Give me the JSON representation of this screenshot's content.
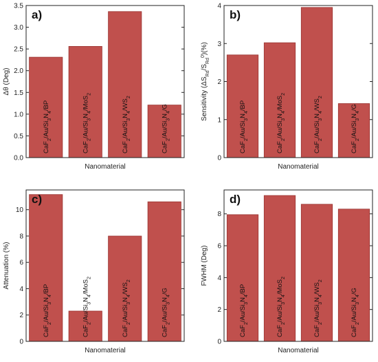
{
  "style": {
    "bar_color": "#c0504d",
    "bar_edge_color": "#9a3431"
  },
  "chart_data": [
    {
      "panel_label": "a)",
      "type": "bar",
      "ylabel": "Δθ (Deg)",
      "xlabel": "Nanomaterial",
      "ylim": [
        0,
        3.5
      ],
      "yticks": [
        0.0,
        0.5,
        1.0,
        1.5,
        2.0,
        2.5,
        3.0,
        3.5
      ],
      "ytick_labels": [
        "0.0",
        "0.5",
        "1.0",
        "1.5",
        "2.0",
        "2.5",
        "3.0",
        "3.5"
      ],
      "categories": [
        "CaF2/Au/Si3N4/BP",
        "CaF2/Au/Si3N4/MoS2",
        "CaF2/Au/Si3N4/WS2",
        "CaF2/Au/Si3N4/G"
      ],
      "values": [
        2.31,
        2.56,
        3.36,
        1.21
      ]
    },
    {
      "panel_label": "b)",
      "type": "bar",
      "ylabel": "Sensitivity (ΔS_Rd/S_Rd^0)(%)",
      "xlabel": "Nanomaterial",
      "ylim": [
        0,
        4
      ],
      "yticks": [
        0,
        1,
        2,
        3,
        4
      ],
      "ytick_labels": [
        "0",
        "1",
        "2",
        "3",
        "4"
      ],
      "categories": [
        "CaF2/Au/Si3N4/BP",
        "CaF2/Au/Si3N4/MoS2",
        "CaF2/Au/Si3N4/WS2",
        "CaF2/Au/Si3N4/G"
      ],
      "values": [
        2.7,
        3.02,
        3.95,
        1.42
      ]
    },
    {
      "panel_label": "c)",
      "type": "bar",
      "ylabel": "Attenuation (%)",
      "xlabel": "Nanomaterial",
      "ylim": [
        0,
        11.5
      ],
      "yticks": [
        0,
        2,
        4,
        6,
        8,
        10
      ],
      "ytick_labels": [
        "0",
        "2",
        "4",
        "6",
        "8",
        "10"
      ],
      "categories": [
        "CaF2/Au/Si3N4/BP",
        "CaF2/Au/Si3N4/MoS2",
        "CaF2/Au/Si3N4/WS2",
        "CaF2/Au/Si3N4/G"
      ],
      "values": [
        11.15,
        2.3,
        8.0,
        10.6
      ]
    },
    {
      "panel_label": "d)",
      "type": "bar",
      "ylabel": "FWHM (Deg)",
      "xlabel": "Nanomaterial",
      "ylim": [
        0,
        9.5
      ],
      "yticks": [
        0,
        2,
        4,
        6,
        8
      ],
      "ytick_labels": [
        "0",
        "2",
        "4",
        "6",
        "8"
      ],
      "categories": [
        "CaF2/Au/Si3N4/BP",
        "CaF2/Au/Si3N4/MoS2",
        "CaF2/Au/Si3N4/WS2",
        "CaF2/Au/Si3N4/G"
      ],
      "values": [
        7.95,
        9.15,
        8.6,
        8.3
      ]
    }
  ]
}
